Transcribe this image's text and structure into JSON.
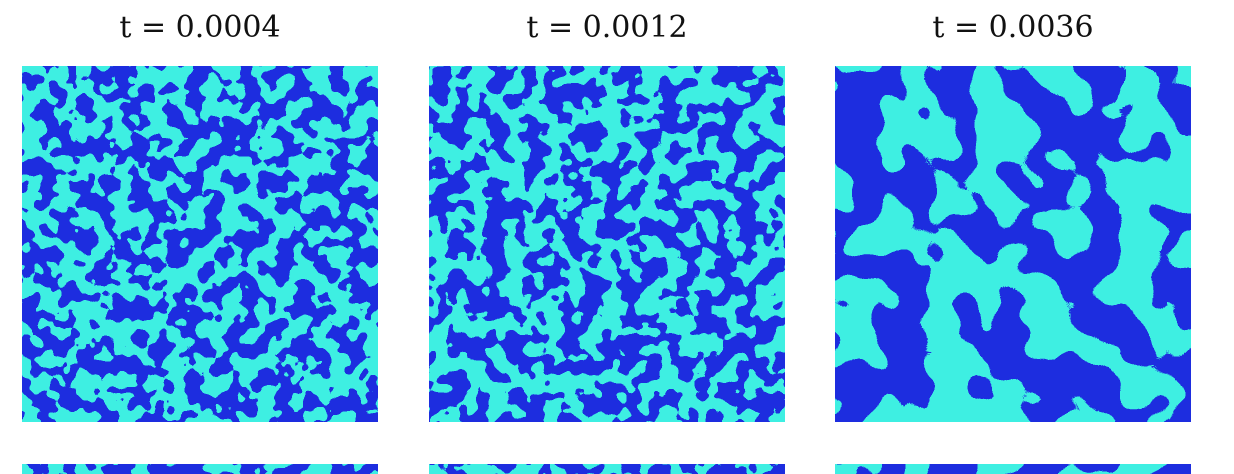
{
  "panels": [
    {
      "time_label": "t = 0.0004"
    },
    {
      "time_label": "t = 0.0012"
    },
    {
      "time_label": "t = 0.0036"
    }
  ],
  "colors": {
    "phase_a": "#1d2ee0",
    "phase_b": "#3ff0e3",
    "background": "#ffffff"
  }
}
